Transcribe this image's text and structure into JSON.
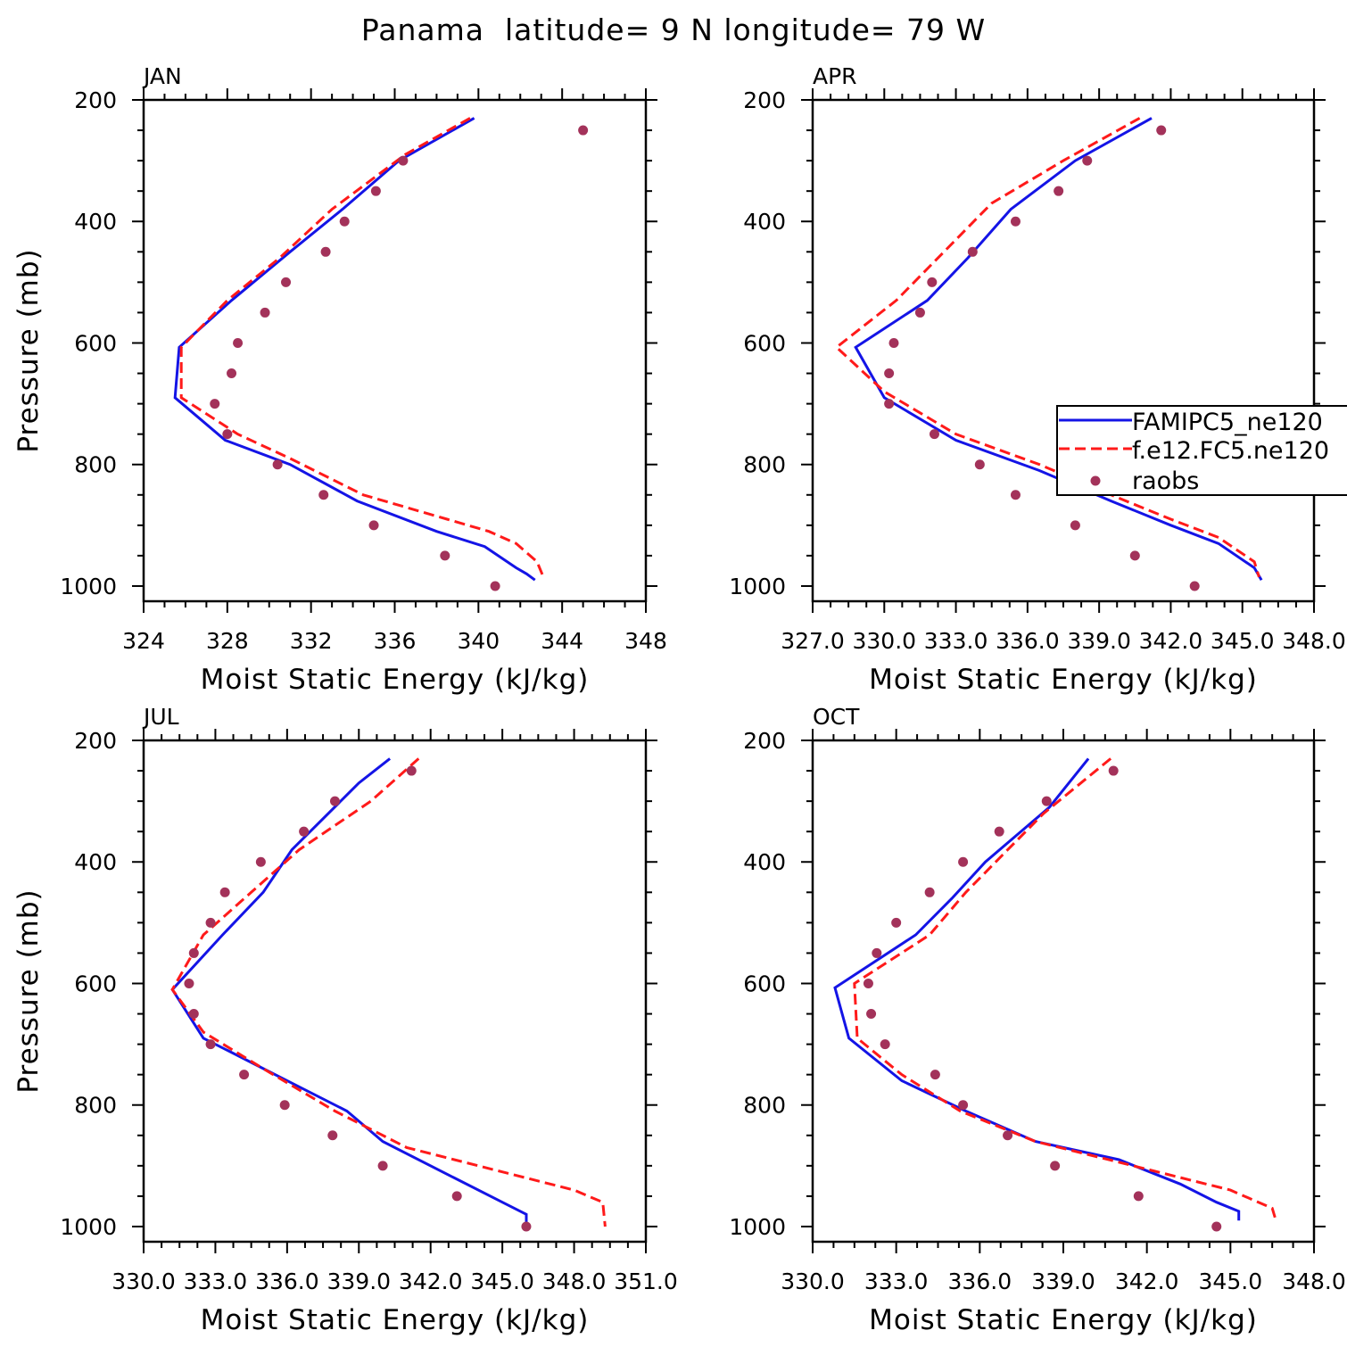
{
  "figure_title": "Panama  latitude= 9 N longitude= 79 W",
  "colors": {
    "model1": "#1414e6",
    "model2": "#ff1a1a",
    "raobs": "#a3325a"
  },
  "legend": {
    "entries": [
      "FAMIPC5_ne120",
      "f.e12.FC5.ne120",
      "raobs"
    ],
    "location": "right-edge of APR panel, partially clipped"
  },
  "chart_data": [
    {
      "type": "line",
      "title": "JAN",
      "xlabel": "Moist Static Energy (kJ/kg)",
      "ylabel": "Pressure (mb)",
      "xlim": [
        324,
        348
      ],
      "ylim": [
        200,
        1025
      ],
      "y_inverted": true,
      "xtick_values": [
        324,
        328,
        332,
        336,
        340,
        344,
        348
      ],
      "xtick_labels": [
        "324",
        "328",
        "332",
        "336",
        "340",
        "344",
        "348"
      ],
      "ytick_values": [
        200,
        400,
        600,
        800,
        1000
      ],
      "ytick_labels": [
        "200",
        "400",
        "600",
        "800",
        "1000"
      ],
      "series": [
        {
          "name": "FAMIPC5_ne120",
          "style": "solid",
          "points": [
            [
              339.8,
              230
            ],
            [
              336.2,
              300
            ],
            [
              333.5,
              380
            ],
            [
              331.0,
              450
            ],
            [
              328.2,
              530
            ],
            [
              325.7,
              607
            ],
            [
              325.5,
              690
            ],
            [
              327.9,
              760
            ],
            [
              331.0,
              800
            ],
            [
              334.2,
              860
            ],
            [
              338.0,
              910
            ],
            [
              340.3,
              935
            ],
            [
              341.8,
              970
            ],
            [
              342.3,
              980
            ],
            [
              342.7,
              990
            ]
          ]
        },
        {
          "name": "f.e12.FC5.ne120",
          "style": "dashed",
          "points": [
            [
              339.6,
              230
            ],
            [
              336.5,
              290
            ],
            [
              333.0,
              380
            ],
            [
              330.5,
              460
            ],
            [
              328.0,
              530
            ],
            [
              325.8,
              607
            ],
            [
              325.8,
              690
            ],
            [
              328.5,
              750
            ],
            [
              331.0,
              790
            ],
            [
              334.5,
              850
            ],
            [
              338.5,
              890
            ],
            [
              340.5,
              910
            ],
            [
              341.8,
              930
            ],
            [
              342.8,
              960
            ],
            [
              343.1,
              985
            ]
          ]
        },
        {
          "name": "raobs",
          "style": "markers",
          "points": [
            [
              345.0,
              250
            ],
            [
              336.4,
              300
            ],
            [
              335.1,
              350
            ],
            [
              333.6,
              400
            ],
            [
              332.7,
              450
            ],
            [
              330.8,
              500
            ],
            [
              329.8,
              550
            ],
            [
              328.5,
              600
            ],
            [
              328.2,
              650
            ],
            [
              327.4,
              700
            ],
            [
              328.0,
              750
            ],
            [
              330.4,
              800
            ],
            [
              332.6,
              850
            ],
            [
              335.0,
              900
            ],
            [
              338.4,
              950
            ],
            [
              340.8,
              1000
            ]
          ]
        }
      ]
    },
    {
      "type": "line",
      "title": "APR",
      "xlabel": "Moist Static Energy (kJ/kg)",
      "ylabel": "",
      "xlim": [
        327,
        348
      ],
      "ylim": [
        200,
        1025
      ],
      "y_inverted": true,
      "xtick_values": [
        327,
        330,
        333,
        336,
        339,
        342,
        345,
        348
      ],
      "xtick_labels": [
        "327.0",
        "330.0",
        "333.0",
        "336.0",
        "339.0",
        "342.0",
        "345.0",
        "348.0"
      ],
      "ytick_values": [
        200,
        400,
        600,
        800,
        1000
      ],
      "ytick_labels": [
        "200",
        "400",
        "600",
        "800",
        "1000"
      ],
      "series": [
        {
          "name": "FAMIPC5_ne120",
          "style": "solid",
          "points": [
            [
              341.2,
              230
            ],
            [
              338.0,
              300
            ],
            [
              335.3,
              380
            ],
            [
              333.5,
              460
            ],
            [
              331.8,
              530
            ],
            [
              328.8,
              607
            ],
            [
              330.0,
              690
            ],
            [
              333.0,
              760
            ],
            [
              336.5,
              810
            ],
            [
              339.5,
              860
            ],
            [
              342.0,
              900
            ],
            [
              344.0,
              930
            ],
            [
              345.5,
              970
            ],
            [
              345.8,
              990
            ]
          ]
        },
        {
          "name": "f.e12.FC5.ne120",
          "style": "dashed",
          "points": [
            [
              340.7,
              230
            ],
            [
              337.5,
              300
            ],
            [
              334.5,
              370
            ],
            [
              332.5,
              450
            ],
            [
              330.5,
              530
            ],
            [
              328.0,
              607
            ],
            [
              330.0,
              680
            ],
            [
              333.0,
              750
            ],
            [
              336.5,
              800
            ],
            [
              339.5,
              850
            ],
            [
              342.0,
              890
            ],
            [
              344.0,
              920
            ],
            [
              345.5,
              960
            ],
            [
              345.7,
              985
            ]
          ]
        },
        {
          "name": "raobs",
          "style": "markers",
          "points": [
            [
              341.6,
              250
            ],
            [
              338.5,
              300
            ],
            [
              337.3,
              350
            ],
            [
              335.5,
              400
            ],
            [
              333.7,
              450
            ],
            [
              332.0,
              500
            ],
            [
              331.5,
              550
            ],
            [
              330.4,
              600
            ],
            [
              330.2,
              650
            ],
            [
              330.2,
              700
            ],
            [
              332.1,
              750
            ],
            [
              334.0,
              800
            ],
            [
              335.5,
              850
            ],
            [
              338.0,
              900
            ],
            [
              340.5,
              950
            ],
            [
              343.0,
              1000
            ]
          ]
        }
      ]
    },
    {
      "type": "line",
      "title": "JUL",
      "xlabel": "Moist Static Energy (kJ/kg)",
      "ylabel": "Pressure (mb)",
      "xlim": [
        330,
        351
      ],
      "ylim": [
        200,
        1025
      ],
      "y_inverted": true,
      "xtick_values": [
        330,
        333,
        336,
        339,
        342,
        345,
        348,
        351
      ],
      "xtick_labels": [
        "330.0",
        "333.0",
        "336.0",
        "339.0",
        "342.0",
        "345.0",
        "348.0",
        "351.0"
      ],
      "ytick_values": [
        200,
        400,
        600,
        800,
        1000
      ],
      "ytick_labels": [
        "200",
        "400",
        "600",
        "800",
        "1000"
      ],
      "series": [
        {
          "name": "FAMIPC5_ne120",
          "style": "solid",
          "points": [
            [
              340.3,
              230
            ],
            [
              339.0,
              270
            ],
            [
              336.2,
              380
            ],
            [
              335.0,
              450
            ],
            [
              333.3,
              520
            ],
            [
              331.2,
              610
            ],
            [
              332.5,
              690
            ],
            [
              334.5,
              730
            ],
            [
              336.5,
              770
            ],
            [
              338.5,
              810
            ],
            [
              340.0,
              860
            ],
            [
              343.0,
              920
            ],
            [
              345.0,
              960
            ],
            [
              346.0,
              980
            ],
            [
              346.0,
              1000
            ]
          ]
        },
        {
          "name": "f.e12.FC5.ne120",
          "style": "dashed",
          "points": [
            [
              341.5,
              230
            ],
            [
              339.5,
              300
            ],
            [
              336.5,
              380
            ],
            [
              334.5,
              450
            ],
            [
              332.5,
              520
            ],
            [
              331.2,
              610
            ],
            [
              332.5,
              680
            ],
            [
              335.0,
              740
            ],
            [
              338.0,
              810
            ],
            [
              341.0,
              870
            ],
            [
              345.0,
              910
            ],
            [
              348.0,
              940
            ],
            [
              349.2,
              960
            ],
            [
              349.3,
              1000
            ]
          ]
        },
        {
          "name": "raobs",
          "style": "markers",
          "points": [
            [
              341.2,
              250
            ],
            [
              338.0,
              300
            ],
            [
              336.7,
              350
            ],
            [
              334.9,
              400
            ],
            [
              333.4,
              450
            ],
            [
              332.8,
              500
            ],
            [
              332.1,
              550
            ],
            [
              331.9,
              600
            ],
            [
              332.1,
              650
            ],
            [
              332.8,
              700
            ],
            [
              334.2,
              750
            ],
            [
              335.9,
              800
            ],
            [
              337.9,
              850
            ],
            [
              340.0,
              900
            ],
            [
              343.1,
              950
            ],
            [
              346.0,
              1000
            ]
          ]
        }
      ]
    },
    {
      "type": "line",
      "title": "OCT",
      "xlabel": "Moist Static Energy (kJ/kg)",
      "ylabel": "",
      "xlim": [
        330,
        348
      ],
      "ylim": [
        200,
        1025
      ],
      "y_inverted": true,
      "xtick_values": [
        330,
        333,
        336,
        339,
        342,
        345,
        348
      ],
      "xtick_labels": [
        "330.0",
        "333.0",
        "336.0",
        "339.0",
        "342.0",
        "345.0",
        "348.0"
      ],
      "ytick_values": [
        200,
        400,
        600,
        800,
        1000
      ],
      "ytick_labels": [
        "200",
        "400",
        "600",
        "800",
        "1000"
      ],
      "series": [
        {
          "name": "FAMIPC5_ne120",
          "style": "solid",
          "points": [
            [
              339.9,
              230
            ],
            [
              338.5,
              310
            ],
            [
              336.2,
              400
            ],
            [
              335.0,
              460
            ],
            [
              333.7,
              520
            ],
            [
              330.8,
              607
            ],
            [
              331.3,
              690
            ],
            [
              333.2,
              760
            ],
            [
              335.5,
              810
            ],
            [
              338.0,
              860
            ],
            [
              341.0,
              890
            ],
            [
              343.2,
              930
            ],
            [
              344.5,
              960
            ],
            [
              345.3,
              975
            ],
            [
              345.3,
              990
            ]
          ]
        },
        {
          "name": "f.e12.FC5.ne120",
          "style": "dashed",
          "points": [
            [
              340.7,
              230
            ],
            [
              338.3,
              320
            ],
            [
              337.0,
              380
            ],
            [
              335.5,
              450
            ],
            [
              334.2,
              520
            ],
            [
              331.5,
              600
            ],
            [
              331.6,
              690
            ],
            [
              333.2,
              750
            ],
            [
              335.3,
              810
            ],
            [
              338.0,
              860
            ],
            [
              341.5,
              900
            ],
            [
              345.0,
              940
            ],
            [
              346.5,
              970
            ],
            [
              346.6,
              985
            ]
          ]
        },
        {
          "name": "raobs",
          "style": "markers",
          "points": [
            [
              340.8,
              250
            ],
            [
              338.4,
              300
            ],
            [
              336.7,
              350
            ],
            [
              335.4,
              400
            ],
            [
              334.2,
              450
            ],
            [
              333.0,
              500
            ],
            [
              332.3,
              550
            ],
            [
              332.0,
              600
            ],
            [
              332.1,
              650
            ],
            [
              332.6,
              700
            ],
            [
              334.4,
              750
            ],
            [
              335.4,
              800
            ],
            [
              337.0,
              850
            ],
            [
              338.7,
              900
            ],
            [
              341.7,
              950
            ],
            [
              344.5,
              1000
            ]
          ]
        }
      ]
    }
  ]
}
